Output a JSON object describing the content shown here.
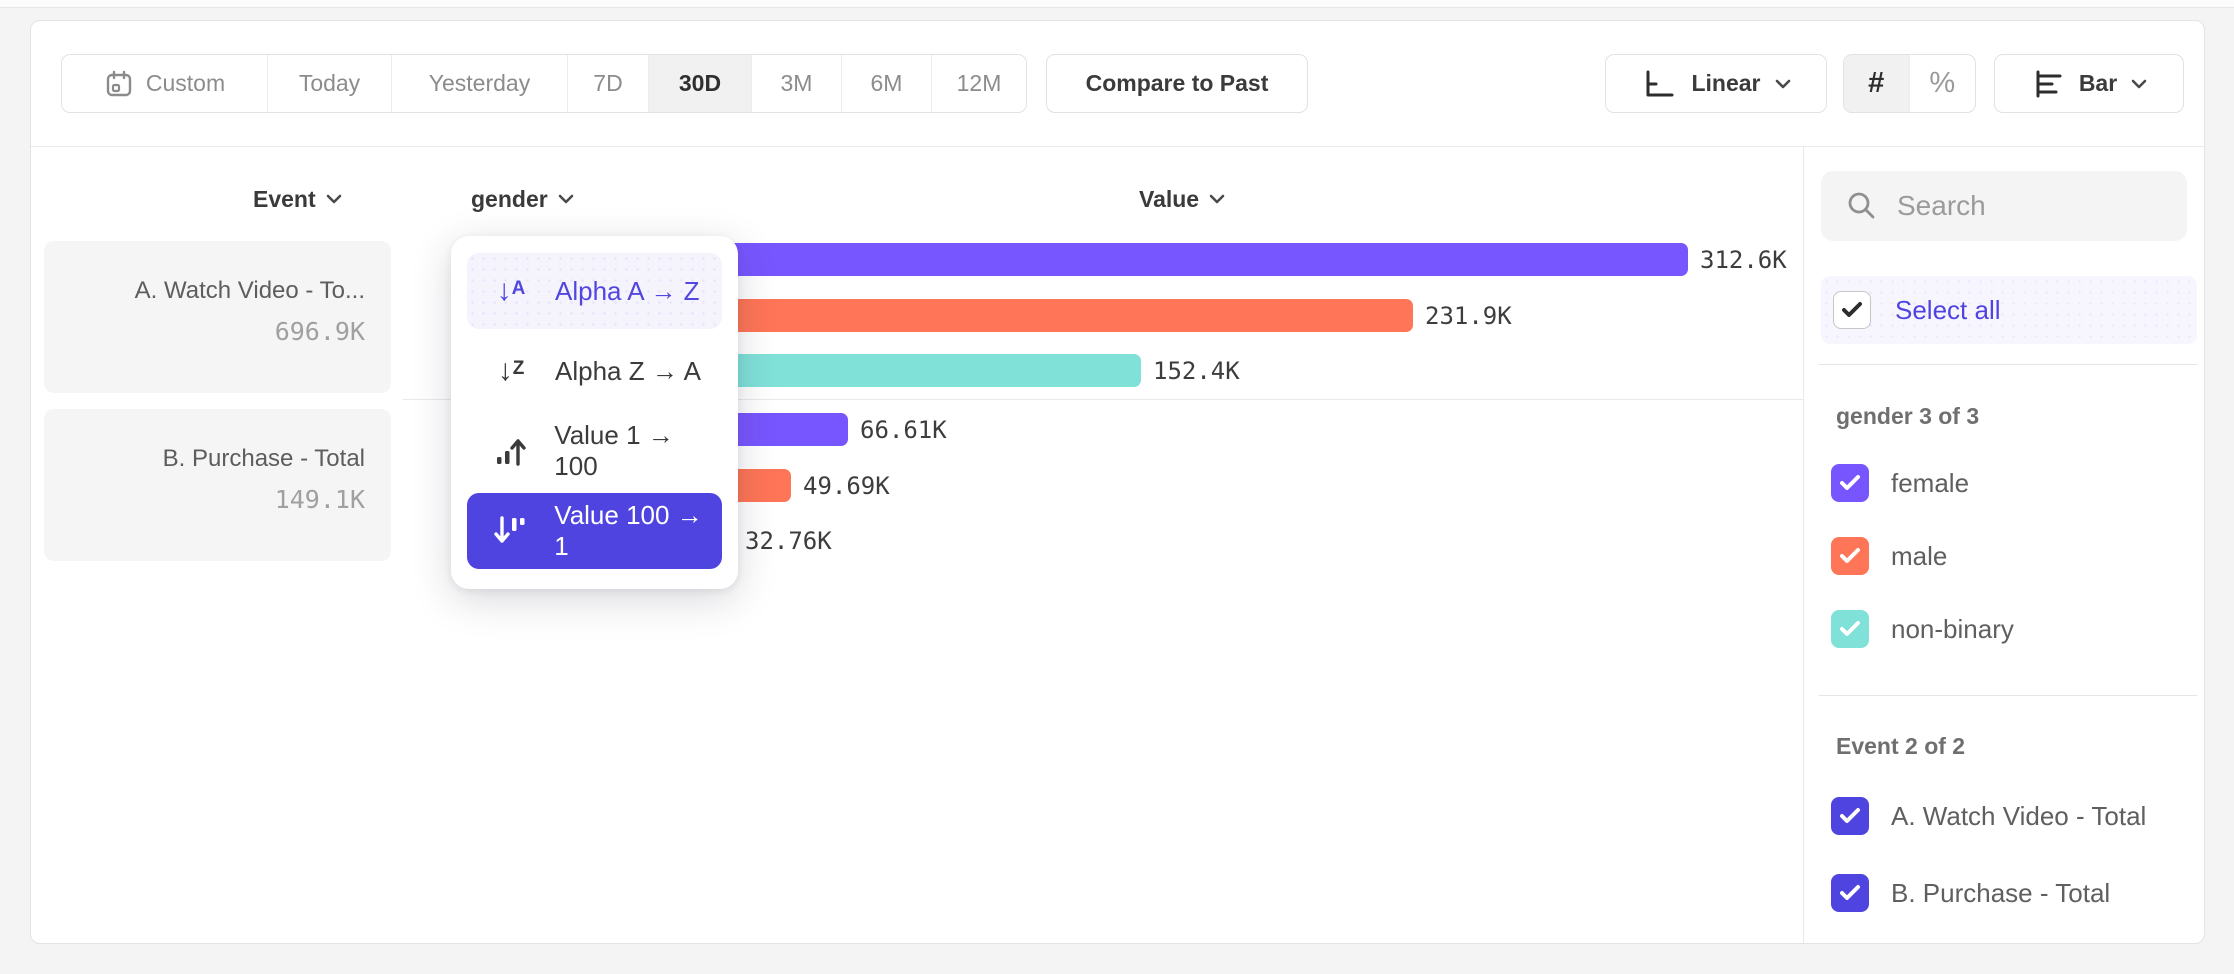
{
  "toolbar": {
    "date_ranges": [
      {
        "label": "Custom",
        "selected": false
      },
      {
        "label": "Today",
        "selected": false
      },
      {
        "label": "Yesterday",
        "selected": false
      },
      {
        "label": "7D",
        "selected": false
      },
      {
        "label": "30D",
        "selected": true
      },
      {
        "label": "3M",
        "selected": false
      },
      {
        "label": "6M",
        "selected": false
      },
      {
        "label": "12M",
        "selected": false
      }
    ],
    "compare_label": "Compare to Past",
    "scale_selector": {
      "label": "Linear"
    },
    "count_toggle": {
      "hash": "#",
      "percent": "%",
      "selected": "#"
    },
    "chart_type_selector": {
      "label": "Bar"
    }
  },
  "columns": {
    "event": "Event",
    "breakdown": "gender",
    "value": "Value"
  },
  "events": [
    {
      "name": "A. Watch Video - To...",
      "total": "696.9K"
    },
    {
      "name": "B. Purchase - Total",
      "total": "149.1K"
    }
  ],
  "sort_menu": {
    "items": [
      {
        "label": "Alpha A → Z",
        "state": "hovered"
      },
      {
        "label": "Alpha Z → A",
        "state": "normal"
      },
      {
        "label": "Value 1 → 100",
        "state": "normal"
      },
      {
        "label": "Value 100 → 1",
        "state": "selected"
      }
    ]
  },
  "chart_data": {
    "type": "bar",
    "orientation": "horizontal",
    "value_axis": "Value",
    "x_max_k": 312.6,
    "groups": [
      {
        "event": "A. Watch Video - Total",
        "bars": [
          {
            "category": "female",
            "value_k": 312.6,
            "label": "312.6K",
            "color": "#7856ff"
          },
          {
            "category": "male",
            "value_k": 231.9,
            "label": "231.9K",
            "color": "#ff7557"
          },
          {
            "category": "non-binary",
            "value_k": 152.4,
            "label": "152.4K",
            "color": "#80e1d9"
          }
        ]
      },
      {
        "event": "B. Purchase - Total",
        "bars": [
          {
            "category": "female",
            "value_k": 66.61,
            "label": "66.61K",
            "color": "#7856ff"
          },
          {
            "category": "male",
            "value_k": 49.69,
            "label": "49.69K",
            "color": "#ff7557"
          },
          {
            "category": "non-binary",
            "value_k": 32.76,
            "label": "32.76K",
            "color": "#80e1d9"
          }
        ]
      }
    ]
  },
  "sidebar": {
    "search": {
      "placeholder": "Search"
    },
    "select_all": {
      "label": "Select all",
      "checked": true
    },
    "sections": [
      {
        "title": "gender 3 of 3",
        "items": [
          {
            "label": "female",
            "checked": true,
            "color": "#7856ff"
          },
          {
            "label": "male",
            "checked": true,
            "color": "#ff7557"
          },
          {
            "label": "non-binary",
            "checked": true,
            "color": "#80e1d9"
          }
        ]
      },
      {
        "title": "Event 2 of 2",
        "items": [
          {
            "label": "A. Watch Video - Total",
            "checked": true,
            "color": "#4f44e0"
          },
          {
            "label": "B. Purchase - Total",
            "checked": true,
            "color": "#4f44e0"
          }
        ]
      }
    ]
  },
  "colors": {
    "accent_indigo": "#4f44e0",
    "series_purple": "#7856ff",
    "series_orange": "#ff7557",
    "series_teal": "#80e1d9",
    "highlight_bg": "#f7f6fe"
  }
}
